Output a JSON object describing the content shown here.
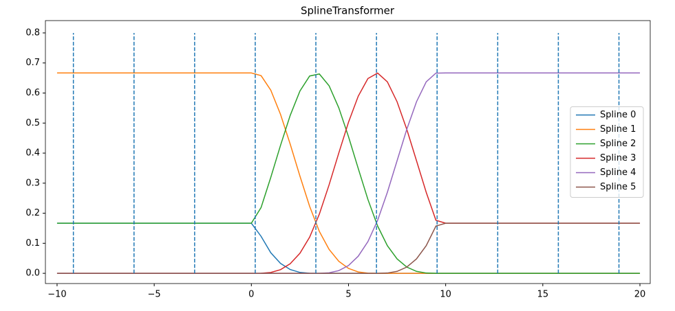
{
  "chart_data": {
    "type": "line",
    "title": "SplineTransformer",
    "x": [
      -10,
      -9.5,
      -9,
      -8.5,
      -8,
      -7.5,
      -7,
      -6.5,
      -6,
      -5.5,
      -5,
      -4.5,
      -4,
      -3.5,
      -3,
      -2.5,
      -2,
      -1.5,
      -1,
      -0.5,
      0,
      0.5,
      1,
      1.5,
      2,
      2.5,
      3,
      3.5,
      4,
      4.5,
      5,
      5.5,
      6,
      6.5,
      7,
      7.5,
      8,
      8.5,
      9,
      9.5,
      10,
      10.5,
      11,
      11.5,
      12,
      12.5,
      13,
      13.5,
      14,
      14.5,
      15,
      15.5,
      16,
      16.5,
      17,
      17.5,
      18,
      18.5,
      19,
      19.5,
      20
    ],
    "series": [
      {
        "name": "Spline 0",
        "color": "#1f77b4",
        "values": [
          0.1667,
          0.1667,
          0.1667,
          0.1667,
          0.1667,
          0.1667,
          0.1667,
          0.1667,
          0.1667,
          0.1667,
          0.1667,
          0.1667,
          0.1667,
          0.1667,
          0.1667,
          0.1667,
          0.1667,
          0.1667,
          0.1667,
          0.1667,
          0.1667,
          0.1231,
          0.0685,
          0.0331,
          0.0126,
          0.003,
          0.0002,
          0,
          0,
          0,
          0,
          0,
          0,
          0,
          0,
          0,
          0,
          0,
          0,
          0,
          0,
          0,
          0,
          0,
          0,
          0,
          0,
          0,
          0,
          0,
          0,
          0,
          0,
          0,
          0,
          0,
          0,
          0,
          0,
          0,
          0
        ]
      },
      {
        "name": "Spline 1",
        "color": "#ff7f0e",
        "values": [
          0.6667,
          0.6667,
          0.6667,
          0.6667,
          0.6667,
          0.6667,
          0.6667,
          0.6667,
          0.6667,
          0.6667,
          0.6667,
          0.6667,
          0.6667,
          0.6667,
          0.6667,
          0.6667,
          0.6667,
          0.6667,
          0.6667,
          0.6667,
          0.6667,
          0.6579,
          0.6094,
          0.5292,
          0.4298,
          0.3235,
          0.2227,
          0.1394,
          0.0797,
          0.0401,
          0.0164,
          0.0046,
          0.0005,
          0,
          0,
          0,
          0,
          0,
          0,
          0,
          0,
          0,
          0,
          0,
          0,
          0,
          0,
          0,
          0,
          0,
          0,
          0,
          0,
          0,
          0,
          0,
          0,
          0,
          0,
          0,
          0
        ]
      },
      {
        "name": "Spline 2",
        "color": "#2ca02c",
        "values": [
          0.1667,
          0.1667,
          0.1667,
          0.1667,
          0.1667,
          0.1667,
          0.1667,
          0.1667,
          0.1667,
          0.1667,
          0.1667,
          0.1667,
          0.1667,
          0.1667,
          0.1667,
          0.1667,
          0.1667,
          0.1667,
          0.1667,
          0.1667,
          0.1667,
          0.2189,
          0.3193,
          0.4256,
          0.5256,
          0.6067,
          0.6566,
          0.6634,
          0.6243,
          0.5507,
          0.4548,
          0.3491,
          0.2457,
          0.1573,
          0.0921,
          0.048,
          0.0208,
          0.0065,
          0.001,
          0,
          0,
          0,
          0,
          0,
          0,
          0,
          0,
          0,
          0,
          0,
          0,
          0,
          0,
          0,
          0,
          0,
          0,
          0,
          0,
          0,
          0
        ]
      },
      {
        "name": "Spline 3",
        "color": "#d62728",
        "values": [
          0,
          0,
          0,
          0,
          0,
          0,
          0,
          0,
          0,
          0,
          0,
          0,
          0,
          0,
          0,
          0,
          0,
          0,
          0,
          0,
          0,
          0.0002,
          0.0028,
          0.0121,
          0.032,
          0.0668,
          0.1205,
          0.1972,
          0.2943,
          0.4002,
          0.5028,
          0.5894,
          0.6482,
          0.6663,
          0.6373,
          0.5709,
          0.4792,
          0.3746,
          0.2696,
          0.1764,
          0.1667,
          0.1667,
          0.1667,
          0.1667,
          0.1667,
          0.1667,
          0.1667,
          0.1667,
          0.1667,
          0.1667,
          0.1667,
          0.1667,
          0.1667,
          0.1667,
          0.1667,
          0.1667,
          0.1667,
          0.1667,
          0.1667,
          0.1667,
          0.1667
        ]
      },
      {
        "name": "Spline 4",
        "color": "#9467bd",
        "values": [
          0,
          0,
          0,
          0,
          0,
          0,
          0,
          0,
          0,
          0,
          0,
          0,
          0,
          0,
          0,
          0,
          0,
          0,
          0,
          0,
          0,
          0,
          0,
          0,
          0,
          0,
          0,
          0,
          0.0017,
          0.009,
          0.026,
          0.0569,
          0.1056,
          0.1764,
          0.2696,
          0.3746,
          0.4792,
          0.5709,
          0.6373,
          0.6663,
          0.6667,
          0.6667,
          0.6667,
          0.6667,
          0.6667,
          0.6667,
          0.6667,
          0.6667,
          0.6667,
          0.6667,
          0.6667,
          0.6667,
          0.6667,
          0.6667,
          0.6667,
          0.6667,
          0.6667,
          0.6667,
          0.6667,
          0.6667,
          0.6667
        ]
      },
      {
        "name": "Spline 5",
        "color": "#8c564b",
        "values": [
          0,
          0,
          0,
          0,
          0,
          0,
          0,
          0,
          0,
          0,
          0,
          0,
          0,
          0,
          0,
          0,
          0,
          0,
          0,
          0,
          0,
          0,
          0,
          0,
          0,
          0,
          0,
          0,
          0,
          0,
          0,
          0,
          0,
          0,
          0.001,
          0.0065,
          0.0208,
          0.048,
          0.0921,
          0.1573,
          0.1667,
          0.1667,
          0.1667,
          0.1667,
          0.1667,
          0.1667,
          0.1667,
          0.1667,
          0.1667,
          0.1667,
          0.1667,
          0.1667,
          0.1667,
          0.1667,
          0.1667,
          0.1667,
          0.1667,
          0.1667,
          0.1667,
          0.1667,
          0.1667
        ]
      }
    ],
    "vlines": [
      -9.16,
      -6.04,
      -2.92,
      0.2,
      3.32,
      6.44,
      9.56,
      12.68,
      15.8,
      18.92
    ],
    "vline_range": [
      0,
      0.8
    ],
    "vline_color": "#1f77b4",
    "xlim": [
      -10.6,
      20.53
    ],
    "ylim": [
      -0.034,
      0.841
    ],
    "xticks": [
      {
        "value": -10,
        "label": "−10"
      },
      {
        "value": -5,
        "label": "−5"
      },
      0,
      5,
      10,
      15,
      20
    ],
    "yticks": [
      {
        "value": 0,
        "label": "0.0"
      },
      0.1,
      0.2,
      0.3,
      0.4,
      0.5,
      0.6,
      0.7,
      0.8
    ],
    "legend": "center right"
  }
}
